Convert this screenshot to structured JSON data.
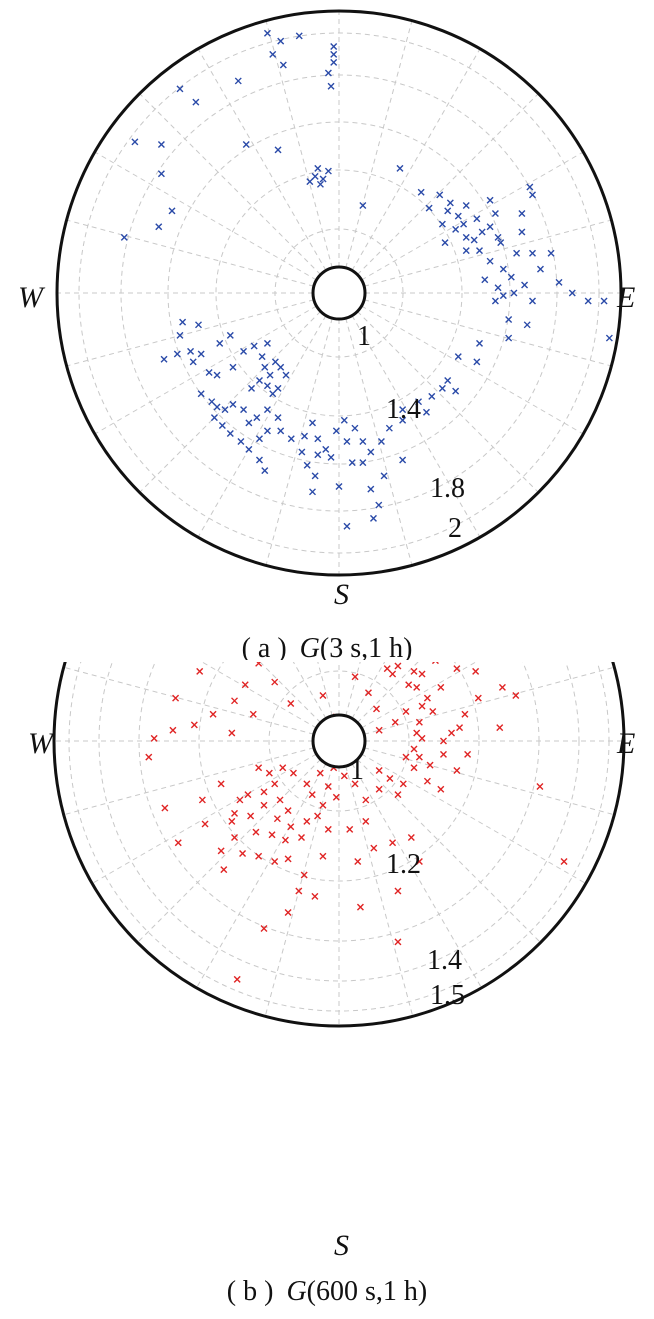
{
  "chart_data": [
    {
      "type": "scatter",
      "polar": true,
      "caption_prefix": "( a )",
      "caption_g": "G",
      "caption_args": "(3 s,1 h)",
      "directions": {
        "west": "W",
        "east": "E",
        "south": "S"
      },
      "radial_range": [
        0.85,
        2.0
      ],
      "radial_ticks": [
        "1",
        "1.4",
        "1.8",
        "2"
      ],
      "marker": "x",
      "color": "#2a4aa8",
      "grid": "dashed",
      "points_xy": [
        [
          -0.27,
          0.98
        ],
        [
          -0.22,
          0.95
        ],
        [
          -0.25,
          0.9
        ],
        [
          -0.21,
          0.86
        ],
        [
          -0.15,
          0.97
        ],
        [
          -0.02,
          0.93
        ],
        [
          -0.02,
          0.9
        ],
        [
          -0.02,
          0.87
        ],
        [
          -0.04,
          0.83
        ],
        [
          -0.03,
          0.78
        ],
        [
          -0.38,
          0.8
        ],
        [
          -0.6,
          0.77
        ],
        [
          -0.54,
          0.72
        ],
        [
          -0.67,
          0.56
        ],
        [
          -0.67,
          0.45
        ],
        [
          -0.77,
          0.57
        ],
        [
          -0.63,
          0.31
        ],
        [
          -0.68,
          0.25
        ],
        [
          -0.81,
          0.21
        ],
        [
          -0.35,
          0.56
        ],
        [
          -0.23,
          0.54
        ],
        [
          -0.08,
          0.47
        ],
        [
          -0.09,
          0.44
        ],
        [
          -0.07,
          0.41
        ],
        [
          -0.04,
          0.46
        ],
        [
          -0.06,
          0.43
        ],
        [
          -0.11,
          0.42
        ],
        [
          0.09,
          0.33
        ],
        [
          0.23,
          0.47
        ],
        [
          0.31,
          0.38
        ],
        [
          0.38,
          0.37
        ],
        [
          0.42,
          0.34
        ],
        [
          0.34,
          0.32
        ],
        [
          0.41,
          0.31
        ],
        [
          0.45,
          0.29
        ],
        [
          0.47,
          0.26
        ],
        [
          0.44,
          0.24
        ],
        [
          0.39,
          0.26
        ],
        [
          0.48,
          0.21
        ],
        [
          0.51,
          0.2
        ],
        [
          0.48,
          0.16
        ],
        [
          0.4,
          0.19
        ],
        [
          0.53,
          0.16
        ],
        [
          0.57,
          0.12
        ],
        [
          0.52,
          0.28
        ],
        [
          0.48,
          0.33
        ],
        [
          0.57,
          0.35
        ],
        [
          0.59,
          0.3
        ],
        [
          0.57,
          0.25
        ],
        [
          0.6,
          0.21
        ],
        [
          0.54,
          0.23
        ],
        [
          0.61,
          0.19
        ],
        [
          0.72,
          0.4
        ],
        [
          0.73,
          0.37
        ],
        [
          0.69,
          0.3
        ],
        [
          0.69,
          0.23
        ],
        [
          0.67,
          0.15
        ],
        [
          0.73,
          0.15
        ],
        [
          0.8,
          0.15
        ],
        [
          0.76,
          0.09
        ],
        [
          0.62,
          0.09
        ],
        [
          0.65,
          0.06
        ],
        [
          0.55,
          0.05
        ],
        [
          0.6,
          0.02
        ],
        [
          0.62,
          -0.01
        ],
        [
          0.66,
          0.0
        ],
        [
          0.59,
          -0.03
        ],
        [
          0.7,
          0.03
        ],
        [
          0.73,
          -0.03
        ],
        [
          0.83,
          0.04
        ],
        [
          0.88,
          0.0
        ],
        [
          0.94,
          -0.03
        ],
        [
          1.0,
          -0.03
        ],
        [
          0.64,
          -0.1
        ],
        [
          0.71,
          -0.12
        ],
        [
          0.64,
          -0.17
        ],
        [
          0.53,
          -0.19
        ],
        [
          0.45,
          -0.24
        ],
        [
          0.52,
          -0.26
        ],
        [
          0.41,
          -0.33
        ],
        [
          0.39,
          -0.36
        ],
        [
          0.44,
          -0.37
        ],
        [
          0.35,
          -0.39
        ],
        [
          0.3,
          -0.41
        ],
        [
          0.33,
          -0.45
        ],
        [
          0.24,
          -0.44
        ],
        [
          0.24,
          -0.48
        ],
        [
          0.19,
          -0.51
        ],
        [
          0.16,
          -0.56
        ],
        [
          0.24,
          -0.63
        ],
        [
          0.17,
          -0.69
        ],
        [
          0.12,
          -0.74
        ],
        [
          0.0,
          -0.73
        ],
        [
          1.02,
          -0.17
        ],
        [
          -0.59,
          -0.11
        ],
        [
          -0.6,
          -0.16
        ],
        [
          -0.53,
          -0.12
        ],
        [
          -0.56,
          -0.22
        ],
        [
          -0.61,
          -0.23
        ],
        [
          -0.66,
          -0.25
        ],
        [
          -0.55,
          -0.26
        ],
        [
          -0.52,
          -0.23
        ],
        [
          -0.45,
          -0.19
        ],
        [
          -0.41,
          -0.16
        ],
        [
          -0.49,
          -0.3
        ],
        [
          -0.46,
          -0.31
        ],
        [
          -0.4,
          -0.28
        ],
        [
          -0.36,
          -0.22
        ],
        [
          -0.32,
          -0.2
        ],
        [
          -0.29,
          -0.24
        ],
        [
          -0.27,
          -0.19
        ],
        [
          -0.28,
          -0.28
        ],
        [
          -0.26,
          -0.31
        ],
        [
          -0.3,
          -0.33
        ],
        [
          -0.27,
          -0.35
        ],
        [
          -0.25,
          -0.38
        ],
        [
          -0.23,
          -0.36
        ],
        [
          -0.2,
          -0.31
        ],
        [
          -0.22,
          -0.28
        ],
        [
          -0.24,
          -0.26
        ],
        [
          -0.33,
          -0.36
        ],
        [
          -0.36,
          -0.44
        ],
        [
          -0.4,
          -0.42
        ],
        [
          -0.43,
          -0.44
        ],
        [
          -0.46,
          -0.43
        ],
        [
          -0.47,
          -0.47
        ],
        [
          -0.48,
          -0.41
        ],
        [
          -0.52,
          -0.38
        ],
        [
          -0.44,
          -0.5
        ],
        [
          -0.41,
          -0.53
        ],
        [
          -0.37,
          -0.56
        ],
        [
          -0.34,
          -0.49
        ],
        [
          -0.31,
          -0.47
        ],
        [
          -0.27,
          -0.44
        ],
        [
          -0.23,
          -0.47
        ],
        [
          -0.22,
          -0.52
        ],
        [
          -0.27,
          -0.52
        ],
        [
          -0.3,
          -0.55
        ],
        [
          -0.34,
          -0.59
        ],
        [
          -0.3,
          -0.63
        ],
        [
          -0.28,
          -0.67
        ],
        [
          -0.18,
          -0.55
        ],
        [
          -0.14,
          -0.6
        ],
        [
          -0.13,
          -0.54
        ],
        [
          -0.1,
          -0.49
        ],
        [
          -0.08,
          -0.55
        ],
        [
          -0.05,
          -0.59
        ],
        [
          -0.01,
          -0.52
        ],
        [
          0.02,
          -0.48
        ],
        [
          0.03,
          -0.56
        ],
        [
          0.06,
          -0.51
        ],
        [
          0.09,
          -0.56
        ],
        [
          0.12,
          -0.6
        ],
        [
          0.09,
          -0.64
        ],
        [
          0.05,
          -0.64
        ],
        [
          -0.03,
          -0.62
        ],
        [
          -0.08,
          -0.61
        ],
        [
          -0.12,
          -0.65
        ],
        [
          -0.09,
          -0.69
        ],
        [
          0.03,
          -0.88
        ],
        [
          0.13,
          -0.85
        ],
        [
          0.15,
          -0.8
        ],
        [
          -0.1,
          -0.75
        ]
      ]
    },
    {
      "type": "scatter",
      "polar": true,
      "caption_prefix": "( b )",
      "caption_g": "G",
      "caption_args": "(600 s,1 h)",
      "directions": {
        "west": "W",
        "east": "E",
        "south": "S"
      },
      "radial_range": [
        0.93,
        1.5
      ],
      "radial_ticks": [
        "1",
        "1.2",
        "1.4",
        "1.5"
      ],
      "marker": "x",
      "color": "#e02424",
      "grid": "dashed",
      "points_xy": [
        [
          -0.0,
          0.5
        ],
        [
          -0.05,
          0.45
        ],
        [
          -0.05,
          0.4
        ],
        [
          -0.02,
          0.36
        ],
        [
          0.03,
          0.36
        ],
        [
          0.06,
          0.33
        ],
        [
          0.1,
          0.31
        ],
        [
          0.08,
          0.38
        ],
        [
          0.12,
          0.36
        ],
        [
          0.14,
          0.4
        ],
        [
          0.18,
          0.38
        ],
        [
          0.2,
          0.34
        ],
        [
          0.23,
          0.31
        ],
        [
          0.22,
          0.28
        ],
        [
          0.2,
          0.25
        ],
        [
          0.26,
          0.21
        ],
        [
          0.28,
          0.26
        ],
        [
          0.31,
          0.25
        ],
        [
          0.29,
          0.2
        ],
        [
          0.33,
          0.16
        ],
        [
          0.35,
          0.11
        ],
        [
          0.31,
          0.13
        ],
        [
          0.3,
          0.07
        ],
        [
          0.29,
          0.03
        ],
        [
          0.31,
          0.01
        ],
        [
          0.28,
          -0.03
        ],
        [
          0.3,
          -0.06
        ],
        [
          0.36,
          0.3
        ],
        [
          0.41,
          0.34
        ],
        [
          0.47,
          0.38
        ],
        [
          0.56,
          0.38
        ],
        [
          0.51,
          0.26
        ],
        [
          0.61,
          0.2
        ],
        [
          0.66,
          0.17
        ],
        [
          0.52,
          0.16
        ],
        [
          0.47,
          0.1
        ],
        [
          0.45,
          0.05
        ],
        [
          0.42,
          0.03
        ],
        [
          0.39,
          -0.0
        ],
        [
          0.39,
          -0.05
        ],
        [
          0.34,
          -0.09
        ],
        [
          0.33,
          -0.15
        ],
        [
          0.28,
          -0.1
        ],
        [
          0.25,
          -0.06
        ],
        [
          0.24,
          -0.16
        ],
        [
          0.22,
          -0.2
        ],
        [
          0.19,
          -0.14
        ],
        [
          0.15,
          -0.11
        ],
        [
          0.15,
          -0.18
        ],
        [
          0.1,
          -0.22
        ],
        [
          0.06,
          -0.16
        ],
        [
          0.02,
          -0.13
        ],
        [
          -0.02,
          -0.1
        ],
        [
          -0.07,
          -0.12
        ],
        [
          -0.04,
          -0.17
        ],
        [
          -0.01,
          -0.21
        ],
        [
          -0.06,
          -0.24
        ],
        [
          -0.1,
          -0.2
        ],
        [
          -0.12,
          -0.16
        ],
        [
          -0.17,
          -0.12
        ],
        [
          -0.21,
          -0.1
        ],
        [
          -0.26,
          -0.12
        ],
        [
          -0.3,
          -0.1
        ],
        [
          -0.24,
          -0.16
        ],
        [
          -0.28,
          -0.19
        ],
        [
          -0.22,
          -0.22
        ],
        [
          -0.19,
          -0.26
        ],
        [
          -0.23,
          -0.29
        ],
        [
          -0.18,
          -0.32
        ],
        [
          -0.12,
          -0.3
        ],
        [
          -0.08,
          -0.28
        ],
        [
          -0.04,
          -0.33
        ],
        [
          0.04,
          -0.33
        ],
        [
          0.1,
          -0.3
        ],
        [
          -0.28,
          -0.24
        ],
        [
          -0.34,
          -0.2
        ],
        [
          -0.37,
          -0.22
        ],
        [
          -0.33,
          -0.28
        ],
        [
          -0.39,
          -0.27
        ],
        [
          -0.44,
          -0.16
        ],
        [
          -0.4,
          -0.3
        ],
        [
          -0.31,
          -0.34
        ],
        [
          -0.25,
          -0.35
        ],
        [
          -0.2,
          -0.37
        ],
        [
          -0.14,
          -0.36
        ],
        [
          -0.39,
          -0.36
        ],
        [
          -0.44,
          -0.41
        ],
        [
          -0.36,
          -0.42
        ],
        [
          -0.3,
          -0.43
        ],
        [
          -0.24,
          -0.45
        ],
        [
          -0.19,
          -0.44
        ],
        [
          -0.13,
          -0.5
        ],
        [
          -0.06,
          -0.43
        ],
        [
          0.07,
          -0.45
        ],
        [
          0.13,
          -0.4
        ],
        [
          0.2,
          -0.38
        ],
        [
          0.27,
          -0.36
        ],
        [
          0.3,
          -0.45
        ],
        [
          -0.15,
          -0.56
        ],
        [
          -0.09,
          -0.58
        ],
        [
          -0.19,
          -0.64
        ],
        [
          -0.28,
          -0.7
        ],
        [
          0.22,
          -0.75
        ],
        [
          -0.38,
          -0.89
        ],
        [
          -0.06,
          0.17
        ],
        [
          -0.01,
          0.09
        ],
        [
          -0.18,
          0.14
        ],
        [
          -0.24,
          0.22
        ],
        [
          -0.3,
          0.29
        ],
        [
          -0.35,
          0.21
        ],
        [
          -0.39,
          0.15
        ],
        [
          -0.32,
          0.1
        ],
        [
          -0.4,
          0.03
        ],
        [
          -0.47,
          0.1
        ],
        [
          -0.52,
          0.26
        ],
        [
          -0.46,
          0.36
        ],
        [
          -0.35,
          0.42
        ],
        [
          -0.26,
          0.47
        ],
        [
          -0.19,
          0.52
        ],
        [
          -0.1,
          0.47
        ],
        [
          -0.54,
          0.06
        ],
        [
          -0.62,
          0.04
        ],
        [
          -0.61,
          0.16
        ],
        [
          -0.69,
          0.01
        ],
        [
          -0.71,
          -0.06
        ],
        [
          -0.65,
          -0.25
        ],
        [
          -0.6,
          -0.38
        ],
        [
          -0.51,
          -0.22
        ],
        [
          -0.5,
          -0.31
        ],
        [
          -0.43,
          -0.48
        ],
        [
          0.06,
          0.24
        ],
        [
          0.11,
          0.18
        ],
        [
          0.14,
          0.12
        ],
        [
          0.15,
          0.04
        ],
        [
          0.21,
          0.07
        ],
        [
          0.25,
          0.11
        ],
        [
          0.18,
          0.27
        ],
        [
          0.38,
          0.2
        ],
        [
          0.44,
          0.27
        ],
        [
          0.27,
          0.45
        ],
        [
          0.36,
          0.49
        ],
        [
          0.5,
          0.45
        ],
        [
          0.6,
          0.05
        ],
        [
          0.75,
          -0.17
        ],
        [
          0.84,
          -0.45
        ],
        [
          0.38,
          -0.18
        ],
        [
          0.44,
          -0.11
        ],
        [
          0.48,
          -0.05
        ],
        [
          0.22,
          -0.56
        ],
        [
          0.08,
          -0.62
        ]
      ]
    }
  ]
}
